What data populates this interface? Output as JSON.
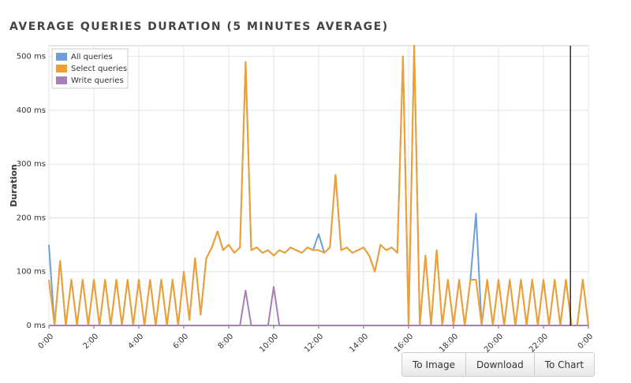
{
  "chart_data": {
    "type": "line",
    "title": "AVERAGE QUERIES DURATION (5 MINUTES AVERAGE)",
    "y_label": "Duration",
    "x": [
      0,
      0.25,
      0.5,
      0.75,
      1,
      1.25,
      1.5,
      1.75,
      2,
      2.25,
      2.5,
      2.75,
      3,
      3.25,
      3.5,
      3.75,
      4,
      4.25,
      4.5,
      4.75,
      5,
      5.25,
      5.5,
      5.75,
      6,
      6.25,
      6.5,
      6.75,
      7,
      7.25,
      7.5,
      7.75,
      8,
      8.25,
      8.5,
      8.75,
      9,
      9.25,
      9.5,
      9.75,
      10,
      10.25,
      10.5,
      10.75,
      11,
      11.25,
      11.5,
      11.75,
      12,
      12.25,
      12.5,
      12.75,
      13,
      13.25,
      13.5,
      13.75,
      14,
      14.25,
      14.5,
      14.75,
      15,
      15.25,
      15.5,
      15.75,
      16,
      16.25,
      16.5,
      16.75,
      17,
      17.25,
      17.5,
      17.75,
      18,
      18.25,
      18.5,
      18.75,
      19,
      19.25,
      19.5,
      19.75,
      20,
      20.25,
      20.5,
      20.75,
      21,
      21.25,
      21.5,
      21.75,
      22,
      22.25,
      22.5,
      22.75,
      23,
      23.25,
      23.5,
      23.75,
      24
    ],
    "series": [
      {
        "name": "All queries",
        "color": "#6f9fd8",
        "values": [
          150,
          0,
          120,
          0,
          85,
          0,
          85,
          0,
          85,
          0,
          85,
          0,
          85,
          0,
          85,
          0,
          85,
          0,
          85,
          0,
          85,
          0,
          85,
          0,
          100,
          10,
          125,
          20,
          125,
          145,
          175,
          140,
          150,
          135,
          145,
          490,
          140,
          145,
          135,
          140,
          130,
          140,
          135,
          145,
          140,
          135,
          145,
          140,
          170,
          135,
          145,
          280,
          140,
          145,
          135,
          140,
          145,
          130,
          100,
          150,
          140,
          145,
          135,
          500,
          0,
          520,
          0,
          130,
          0,
          140,
          0,
          85,
          0,
          85,
          0,
          85,
          208,
          0,
          85,
          0,
          85,
          0,
          85,
          0,
          85,
          0,
          85,
          0,
          85,
          0,
          85,
          0,
          85,
          0,
          0,
          85,
          0
        ]
      },
      {
        "name": "Select queries",
        "color": "#f0a030",
        "values": [
          85,
          0,
          120,
          0,
          85,
          0,
          85,
          0,
          85,
          0,
          85,
          0,
          85,
          0,
          85,
          0,
          85,
          0,
          85,
          0,
          85,
          0,
          85,
          0,
          100,
          10,
          125,
          20,
          125,
          145,
          175,
          140,
          150,
          135,
          145,
          490,
          140,
          145,
          135,
          140,
          130,
          140,
          135,
          145,
          140,
          135,
          145,
          140,
          140,
          135,
          145,
          280,
          140,
          145,
          135,
          140,
          145,
          130,
          100,
          150,
          140,
          145,
          135,
          500,
          0,
          520,
          0,
          130,
          0,
          140,
          0,
          85,
          0,
          85,
          0,
          85,
          85,
          0,
          85,
          0,
          85,
          0,
          85,
          0,
          85,
          0,
          85,
          0,
          85,
          0,
          85,
          0,
          85,
          0,
          0,
          85,
          0
        ]
      },
      {
        "name": "Write queries",
        "color": "#a87fb5",
        "values": [
          0,
          0,
          0,
          0,
          0,
          0,
          0,
          0,
          0,
          0,
          0,
          0,
          0,
          0,
          0,
          0,
          0,
          0,
          0,
          0,
          0,
          0,
          0,
          0,
          0,
          0,
          0,
          0,
          0,
          0,
          0,
          0,
          0,
          0,
          0,
          65,
          0,
          0,
          0,
          0,
          72,
          0,
          0,
          0,
          0,
          0,
          0,
          0,
          0,
          0,
          0,
          0,
          0,
          0,
          0,
          0,
          0,
          0,
          0,
          0,
          0,
          0,
          0,
          0,
          0,
          0,
          0,
          0,
          0,
          0,
          0,
          0,
          0,
          0,
          0,
          0,
          0,
          0,
          0,
          0,
          0,
          0,
          0,
          0,
          0,
          0,
          0,
          0,
          0,
          0,
          0,
          0,
          0,
          0,
          0,
          0,
          0
        ]
      }
    ],
    "xlim": [
      0,
      24
    ],
    "xticks": [
      {
        "value": 0,
        "label": "0:00"
      },
      {
        "value": 2,
        "label": "2:00"
      },
      {
        "value": 4,
        "label": "4:00"
      },
      {
        "value": 6,
        "label": "6:00"
      },
      {
        "value": 8,
        "label": "8:00"
      },
      {
        "value": 10,
        "label": "10:00"
      },
      {
        "value": 12,
        "label": "12:00"
      },
      {
        "value": 14,
        "label": "14:00"
      },
      {
        "value": 16,
        "label": "16:00"
      },
      {
        "value": 18,
        "label": "18:00"
      },
      {
        "value": 20,
        "label": "20:00"
      },
      {
        "value": 22,
        "label": "22:00"
      },
      {
        "value": 24,
        "label": "0:00"
      }
    ],
    "ylim": [
      0,
      520
    ],
    "yticks": [
      {
        "value": 0,
        "label": "0 ms"
      },
      {
        "value": 100,
        "label": "100 ms"
      },
      {
        "value": 200,
        "label": "200 ms"
      },
      {
        "value": 300,
        "label": "300 ms"
      },
      {
        "value": 400,
        "label": "400 ms"
      },
      {
        "value": 500,
        "label": "500 ms"
      }
    ],
    "grid": true,
    "legend": "top-left",
    "now_line": 23.2
  },
  "buttons": [
    "To Image",
    "Download",
    "To Chart"
  ]
}
